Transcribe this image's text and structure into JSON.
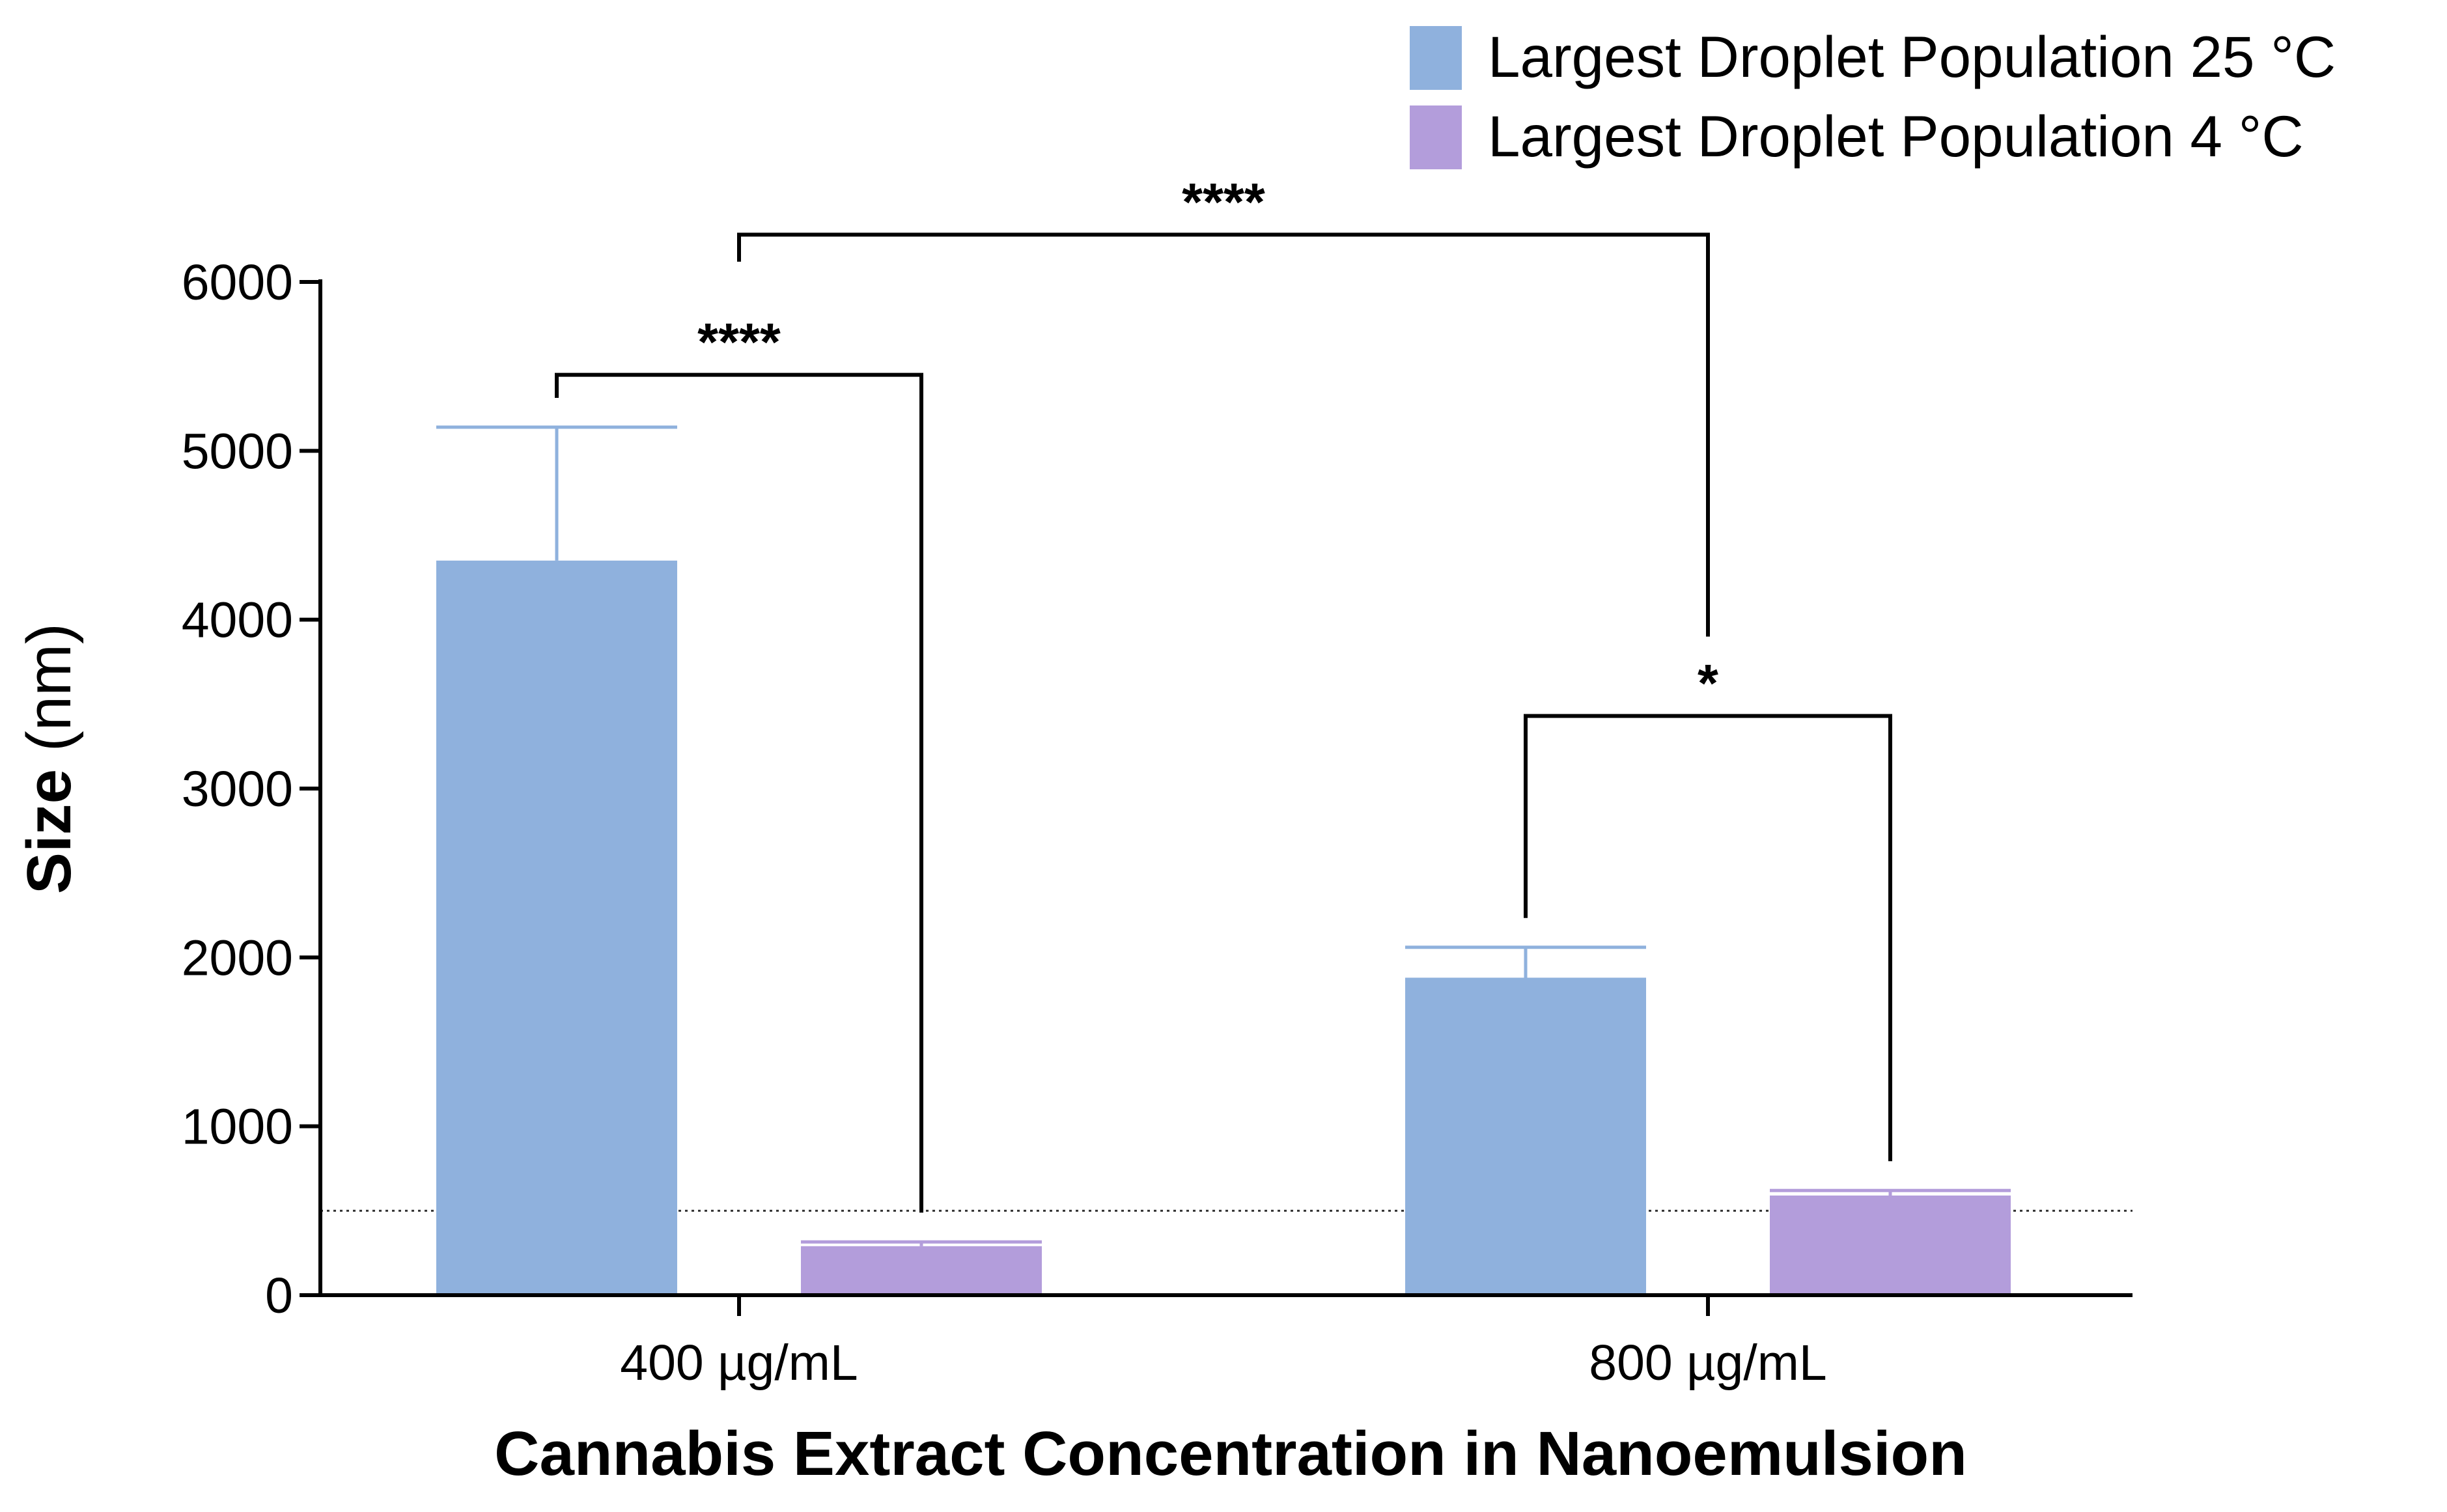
{
  "chart_data": {
    "type": "bar",
    "categories": [
      "400 µg/mL",
      "800 µg/mL"
    ],
    "series": [
      {
        "name": "Largest Droplet Population 25 °C",
        "color": "#8fb1dd",
        "values": [
          4350,
          1880
        ],
        "errors": [
          790,
          180
        ]
      },
      {
        "name": "Largest Droplet Population 4 °C",
        "color": "#b39ddb",
        "values": [
          290,
          590
        ],
        "errors": [
          25,
          30
        ]
      }
    ],
    "xlabel": "Cannabis Extract Concentration in Nanoemulsion",
    "ylabel_bold": "Size",
    "ylabel_rest": " (nm)",
    "ylim": [
      0,
      6000
    ],
    "yticks": [
      0,
      1000,
      2000,
      3000,
      4000,
      5000,
      6000
    ],
    "reference_line": 500,
    "legend_position": "top-right",
    "significance": [
      {
        "label": "****",
        "from": {
          "category": 0,
          "series": 0
        },
        "to": {
          "category": 0,
          "series": 1
        },
        "level": 5450
      },
      {
        "label": "*",
        "from": {
          "category": 1,
          "series": 0
        },
        "to": {
          "category": 1,
          "series": 1
        },
        "level": 3430
      },
      {
        "label": "****",
        "from": {
          "category": 0,
          "series": "group"
        },
        "to": {
          "category": 1,
          "series": "group"
        },
        "level": 6280
      }
    ]
  }
}
